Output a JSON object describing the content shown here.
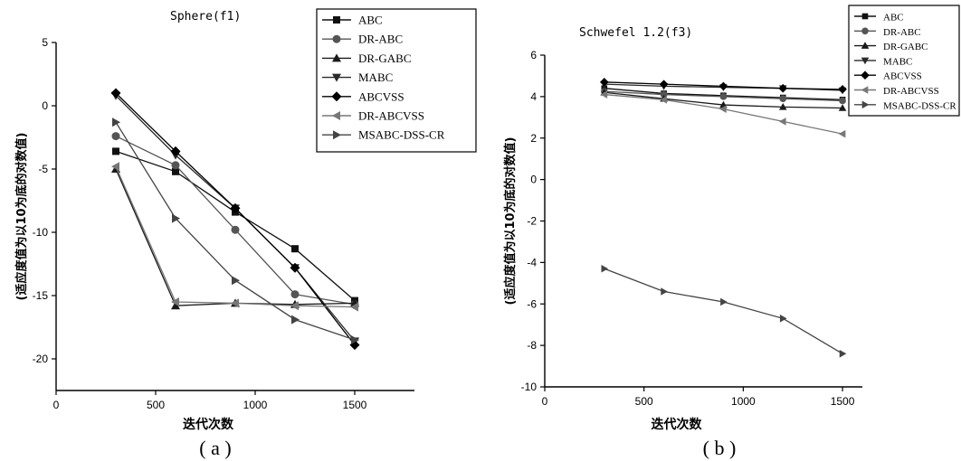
{
  "chart_data": [
    {
      "type": "line",
      "title": "Sphere(f1)",
      "xlabel": "迭代次数",
      "ylabel": "(适应度值为以10为底的对数值)",
      "caption": "( a )",
      "xlim": [
        0,
        1800
      ],
      "ylim": [
        -22.5,
        5
      ],
      "xticks": [
        0,
        500,
        1000,
        1500
      ],
      "yticks": [
        5,
        0,
        -5,
        -10,
        -15,
        -20
      ],
      "x": [
        300,
        600,
        900,
        1200,
        1500
      ],
      "legend_position": "top-right",
      "series": [
        {
          "name": "ABC",
          "marker": "square",
          "values": [
            -3.6,
            -5.2,
            -8.4,
            -11.3,
            -15.4
          ]
        },
        {
          "name": "DR-ABC",
          "marker": "circle",
          "values": [
            -2.4,
            -4.7,
            -9.8,
            -14.9,
            -15.7
          ]
        },
        {
          "name": "DR-GABC",
          "marker": "triangle-up",
          "values": [
            -5.0,
            -15.8,
            -15.6,
            -15.7,
            -15.6
          ]
        },
        {
          "name": "MABC",
          "marker": "triangle-down",
          "values": [
            0.8,
            -3.9,
            -8.1,
            -12.8,
            -18.6
          ]
        },
        {
          "name": "ABCVSS",
          "marker": "diamond",
          "values": [
            1.0,
            -3.6,
            -8.1,
            -12.8,
            -18.9
          ]
        },
        {
          "name": "DR-ABCVSS",
          "marker": "triangle-left",
          "values": [
            -4.8,
            -15.5,
            -15.6,
            -15.8,
            -15.9
          ]
        },
        {
          "name": "MSABC-DSS-CR",
          "marker": "triangle-right",
          "values": [
            -1.3,
            -8.9,
            -13.8,
            -16.9,
            -18.5
          ]
        }
      ]
    },
    {
      "type": "line",
      "title": "Schwefel 1.2(f3)",
      "xlabel": "迭代次数",
      "ylabel": "(适应度值为以10为底的对数值)",
      "caption": "( b )",
      "xlim": [
        0,
        1600
      ],
      "ylim": [
        -10,
        6
      ],
      "xticks": [
        0,
        500,
        1000,
        1500
      ],
      "yticks": [
        6,
        4,
        2,
        0,
        -2,
        -4,
        -6,
        -8,
        -10
      ],
      "x": [
        300,
        600,
        900,
        1200,
        1500
      ],
      "legend_position": "top-right",
      "series": [
        {
          "name": "ABC",
          "marker": "square",
          "values": [
            4.4,
            4.15,
            4.05,
            3.95,
            3.85
          ]
        },
        {
          "name": "DR-ABC",
          "marker": "circle",
          "values": [
            4.25,
            4.1,
            4.0,
            3.9,
            3.8
          ]
        },
        {
          "name": "DR-GABC",
          "marker": "triangle-up",
          "values": [
            4.2,
            3.9,
            3.6,
            3.5,
            3.45
          ]
        },
        {
          "name": "MABC",
          "marker": "triangle-down",
          "values": [
            4.6,
            4.5,
            4.45,
            4.4,
            4.3
          ]
        },
        {
          "name": "ABCVSS",
          "marker": "diamond",
          "values": [
            4.7,
            4.6,
            4.5,
            4.4,
            4.35
          ]
        },
        {
          "name": "DR-ABCVSS",
          "marker": "triangle-left",
          "values": [
            4.1,
            3.85,
            3.4,
            2.8,
            2.2
          ]
        },
        {
          "name": "MSABC-DSS-CR",
          "marker": "triangle-right",
          "values": [
            -4.3,
            -5.4,
            -5.9,
            -6.7,
            -8.4
          ]
        }
      ]
    }
  ]
}
